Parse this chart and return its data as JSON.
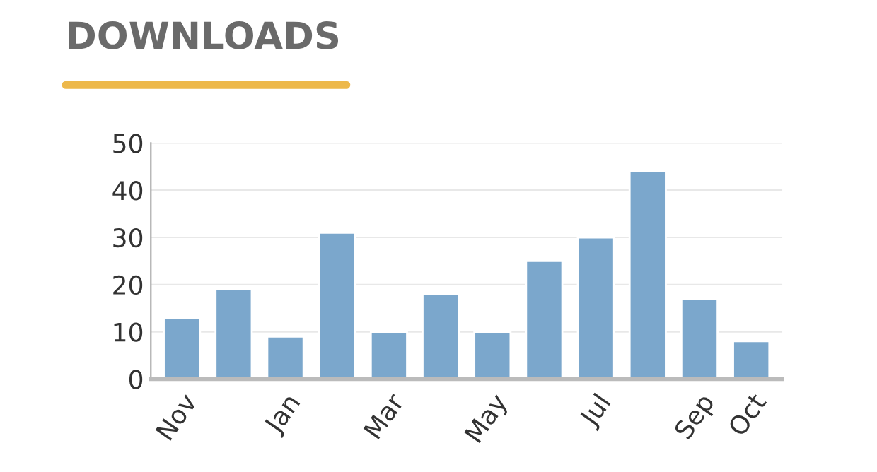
{
  "chart_data": {
    "type": "bar",
    "title": "DOWNLOADS",
    "categories": [
      "Nov",
      null,
      "Jan",
      null,
      "Mar",
      null,
      "May",
      null,
      "Jul",
      null,
      "Sep",
      "Oct"
    ],
    "values": [
      13,
      19,
      9,
      31,
      10,
      18,
      10,
      25,
      30,
      44,
      17,
      8
    ],
    "color": "#7ba7cc",
    "ylim": [
      0,
      50
    ],
    "yticks": [
      0,
      10,
      20,
      30,
      40,
      50
    ],
    "grid": "y"
  }
}
